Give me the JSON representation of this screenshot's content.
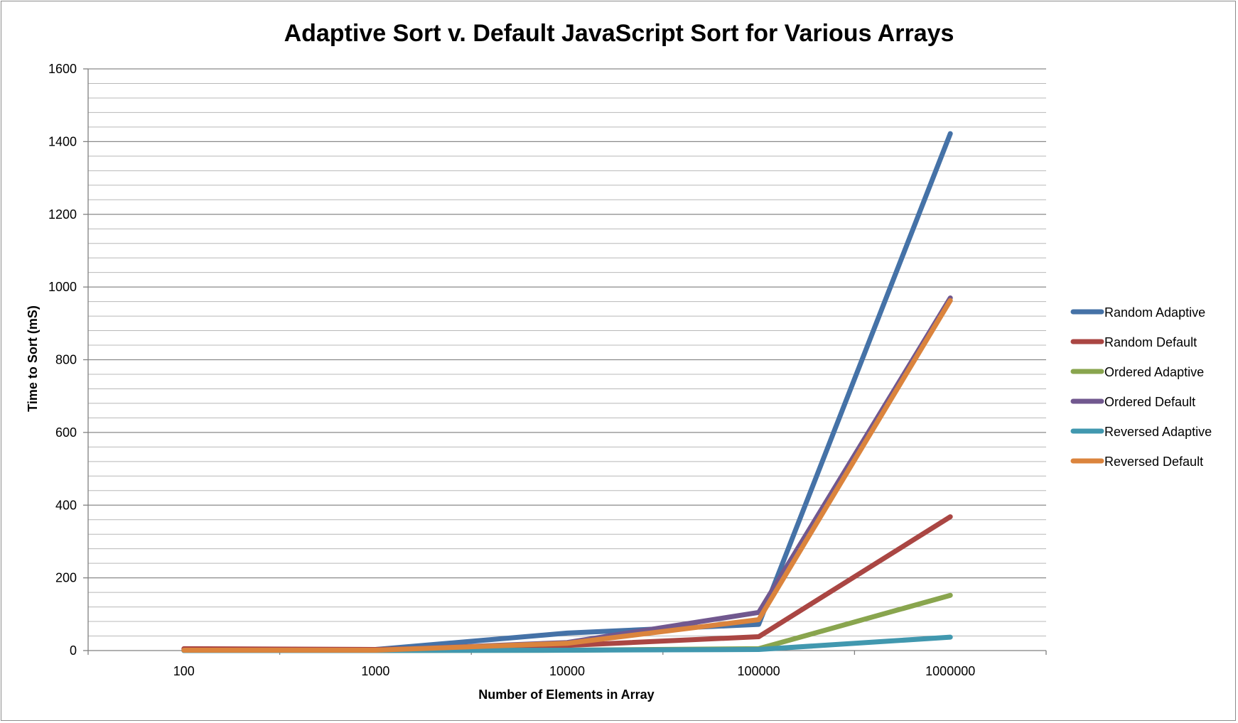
{
  "chart_data": {
    "type": "line",
    "title": "Adaptive Sort v. Default JavaScript Sort for Various Arrays",
    "xlabel": "Number of Elements in Array",
    "ylabel": "Time to Sort (mS)",
    "categories": [
      "100",
      "1000",
      "10000",
      "100000",
      "1000000"
    ],
    "ylim": [
      0,
      1600
    ],
    "yticks": [
      "0",
      "200",
      "400",
      "600",
      "800",
      "1000",
      "1200",
      "1400",
      "1600"
    ],
    "ytick_values": [
      0,
      200,
      400,
      600,
      800,
      1000,
      1200,
      1400,
      1600
    ],
    "minor_grid_step": 40,
    "grid": true,
    "legend_position": "right",
    "series": [
      {
        "name": "Random Adaptive",
        "color": "#4572A7",
        "values": [
          2,
          3,
          48,
          72,
          1422
        ]
      },
      {
        "name": "Random Default",
        "color": "#AA4643",
        "values": [
          5,
          3,
          14,
          38,
          368
        ]
      },
      {
        "name": "Ordered Adaptive",
        "color": "#89A54E",
        "values": [
          0,
          0,
          1,
          5,
          152
        ]
      },
      {
        "name": "Ordered Default",
        "color": "#71588F",
        "values": [
          1,
          1,
          22,
          105,
          970
        ]
      },
      {
        "name": "Reversed Adaptive",
        "color": "#4198AF",
        "values": [
          0,
          0,
          1,
          3,
          37
        ]
      },
      {
        "name": "Reversed Default",
        "color": "#DB843D",
        "values": [
          1,
          1,
          20,
          85,
          963
        ]
      }
    ]
  }
}
